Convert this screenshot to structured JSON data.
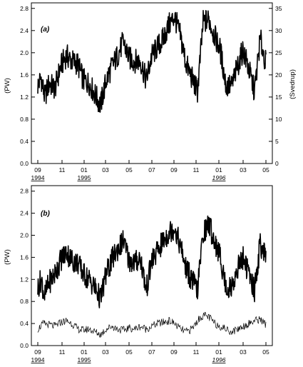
{
  "chart_data": [
    {
      "type": "line",
      "panel_label": "(a)",
      "ylabel": "(PW)",
      "y2label": "(Svedrup)",
      "ylim": [
        0,
        2.9
      ],
      "y2lim": [
        0,
        36.25
      ],
      "yticks": [
        "0.0",
        "0.4",
        "0.8",
        "1.2",
        "1.6",
        "2.0",
        "2.4",
        "2.8"
      ],
      "y2ticks": [
        "0",
        "5",
        "10",
        "15",
        "20",
        "25",
        "30",
        "35"
      ],
      "x_tick_labels": [
        "09",
        "11",
        "01",
        "03",
        "05",
        "07",
        "09",
        "11",
        "01",
        "03",
        "05"
      ],
      "year_labels": [
        "1994",
        "1995",
        "1996"
      ],
      "grid": false,
      "series": [
        {
          "x_months": [
            0,
            0.3,
            0.6,
            1.0,
            1.5,
            2.0,
            2.5,
            3.0,
            3.5,
            4.0,
            4.5,
            5.0,
            5.5,
            6.0,
            6.5,
            7.0,
            7.5,
            8.0,
            8.5,
            9.0,
            9.5,
            10.0,
            10.5,
            11.0,
            11.5,
            12.0,
            12.5,
            13.0,
            13.5,
            14.0,
            14.5,
            15.0,
            15.5,
            16.0,
            16.5,
            17.0,
            17.5,
            18.0,
            18.5,
            19.0,
            19.5,
            20.0
          ],
          "values": [
            1.4,
            1.55,
            1.2,
            1.45,
            1.35,
            1.75,
            1.95,
            1.85,
            1.8,
            1.5,
            1.45,
            1.25,
            1.05,
            1.5,
            1.75,
            1.95,
            2.2,
            1.9,
            1.85,
            1.85,
            1.5,
            1.95,
            2.1,
            2.25,
            2.5,
            2.65,
            2.3,
            1.8,
            1.55,
            1.3,
            2.55,
            2.6,
            2.3,
            2.05,
            1.4,
            1.4,
            1.75,
            2.05,
            1.7,
            1.3,
            2.25,
            1.8
          ]
        }
      ]
    },
    {
      "type": "line",
      "panel_label": "(b)",
      "ylabel": "(PW)",
      "ylim": [
        0,
        2.9
      ],
      "yticks": [
        "0.0",
        "0.4",
        "0.8",
        "1.2",
        "1.6",
        "2.0",
        "2.4",
        "2.8"
      ],
      "x_tick_labels": [
        "09",
        "11",
        "01",
        "03",
        "05",
        "07",
        "09",
        "11",
        "01",
        "03",
        "05"
      ],
      "year_labels": [
        "1994",
        "1995",
        "1996"
      ],
      "grid": false,
      "series": [
        {
          "x_months": [
            0,
            0.3,
            0.6,
            1.0,
            1.5,
            2.0,
            2.5,
            3.0,
            3.5,
            4.0,
            4.5,
            5.0,
            5.5,
            6.0,
            6.5,
            7.0,
            7.5,
            8.0,
            8.5,
            9.0,
            9.5,
            10.0,
            10.5,
            11.0,
            11.5,
            12.0,
            12.5,
            13.0,
            13.5,
            14.0,
            14.5,
            15.0,
            15.5,
            16.0,
            16.5,
            17.0,
            17.5,
            18.0,
            18.5,
            19.0,
            19.5,
            20.0
          ],
          "values": [
            1.05,
            1.2,
            0.9,
            1.15,
            1.3,
            1.55,
            1.7,
            1.55,
            1.5,
            1.3,
            1.2,
            1.05,
            0.85,
            1.3,
            1.55,
            1.75,
            1.9,
            1.55,
            1.5,
            1.6,
            1.0,
            1.55,
            1.7,
            1.9,
            2.05,
            2.15,
            1.8,
            1.4,
            1.2,
            1.0,
            2.05,
            2.2,
            1.9,
            1.6,
            1.05,
            1.05,
            1.4,
            1.6,
            1.3,
            1.0,
            1.85,
            1.55
          ]
        },
        {
          "x_months": [
            0,
            0.5,
            1.0,
            1.5,
            2.0,
            2.5,
            3.0,
            3.5,
            4.0,
            4.5,
            5.0,
            5.5,
            6.0,
            6.5,
            7.0,
            7.5,
            8.0,
            8.5,
            9.0,
            9.5,
            10.0,
            10.5,
            11.0,
            11.5,
            12.0,
            12.5,
            13.0,
            13.5,
            14.0,
            14.5,
            15.0,
            15.5,
            16.0,
            16.5,
            17.0,
            17.5,
            18.0,
            18.5,
            19.0,
            19.5,
            20.0
          ],
          "values": [
            0.3,
            0.4,
            0.38,
            0.35,
            0.42,
            0.45,
            0.4,
            0.3,
            0.28,
            0.3,
            0.25,
            0.2,
            0.3,
            0.35,
            0.3,
            0.28,
            0.32,
            0.3,
            0.35,
            0.3,
            0.35,
            0.4,
            0.42,
            0.45,
            0.4,
            0.3,
            0.25,
            0.3,
            0.45,
            0.55,
            0.52,
            0.4,
            0.35,
            0.3,
            0.25,
            0.3,
            0.35,
            0.4,
            0.45,
            0.48,
            0.38
          ]
        }
      ]
    }
  ]
}
